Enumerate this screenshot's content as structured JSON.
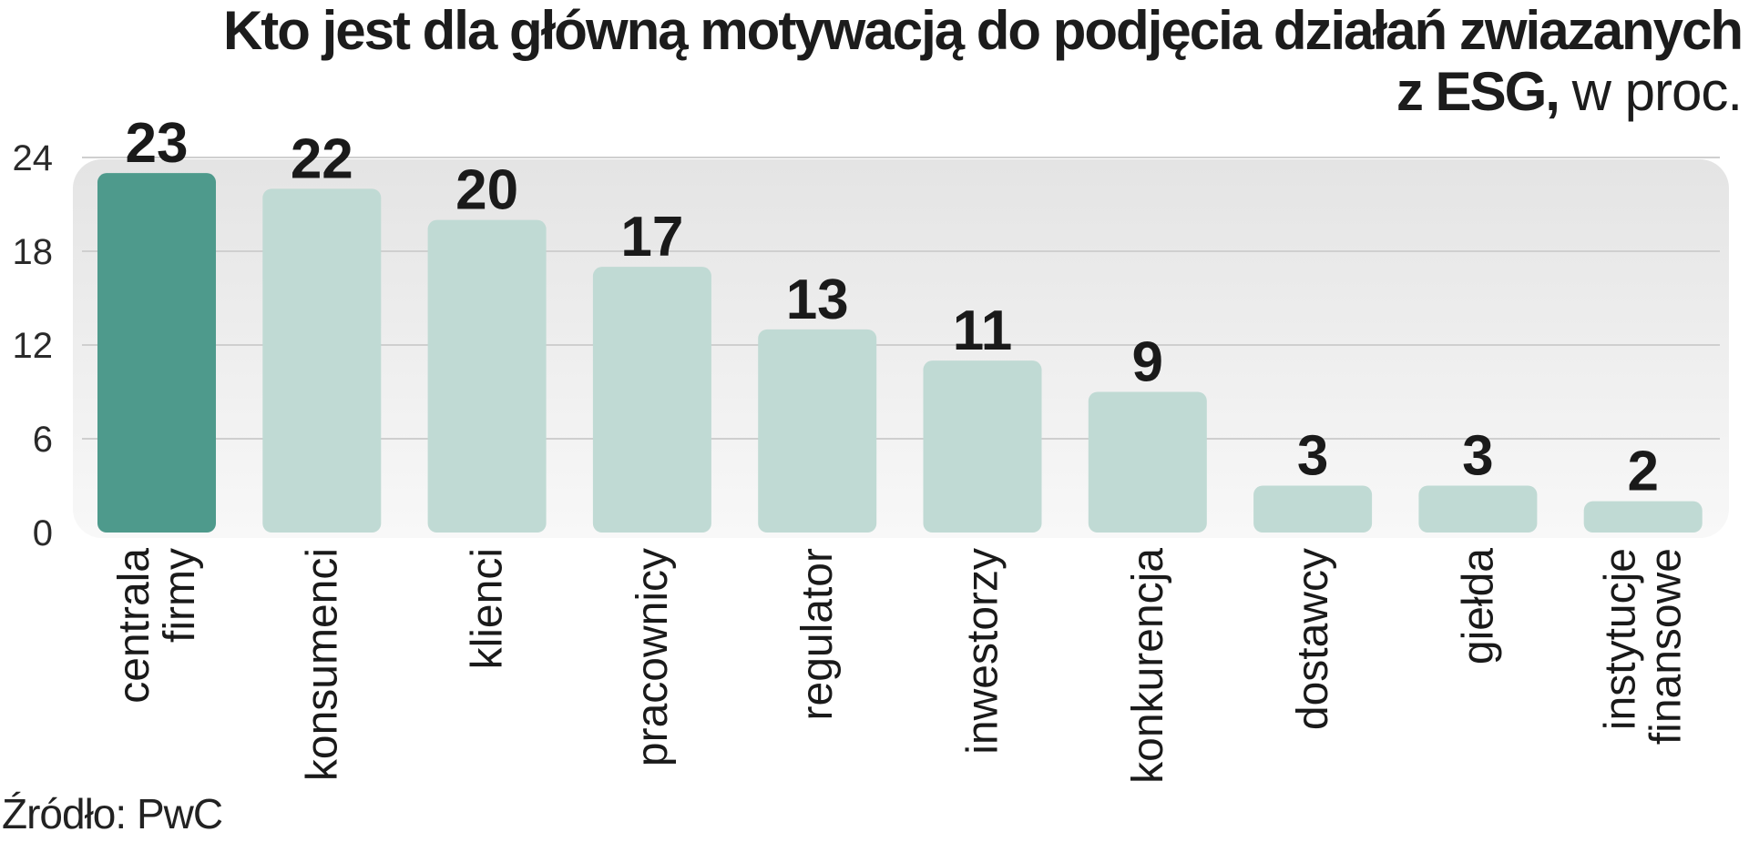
{
  "title": {
    "line1": "Kto jest dla główną motywacją do podjęcia działań zwiazanych",
    "line2_bold": "z ESG,",
    "line2_unit": "w proc."
  },
  "source": "Źródło: PwC",
  "colors": {
    "highlight": "#4e9a8c",
    "bar": "#c0dad4",
    "panel_top": "#e4e4e4",
    "panel_bottom": "#f8f8f8",
    "grid": "#cfcfcf",
    "text": "#1a1a1a"
  },
  "chart_data": {
    "type": "bar",
    "categories": [
      [
        "centrala",
        "firmy"
      ],
      [
        "konsumenci"
      ],
      [
        "klienci"
      ],
      [
        "pracownicy"
      ],
      [
        "regulator"
      ],
      [
        "inwestorzy"
      ],
      [
        "konkurencja"
      ],
      [
        "dostawcy"
      ],
      [
        "giełda"
      ],
      [
        "instytucje",
        "finansowe"
      ]
    ],
    "values": [
      23,
      22,
      20,
      17,
      13,
      11,
      9,
      3,
      3,
      2
    ],
    "highlight_index": 0,
    "ylim": [
      0,
      24
    ],
    "yticks": [
      0,
      6,
      12,
      18,
      24
    ],
    "grid": true,
    "xlabel": "",
    "ylabel": ""
  }
}
